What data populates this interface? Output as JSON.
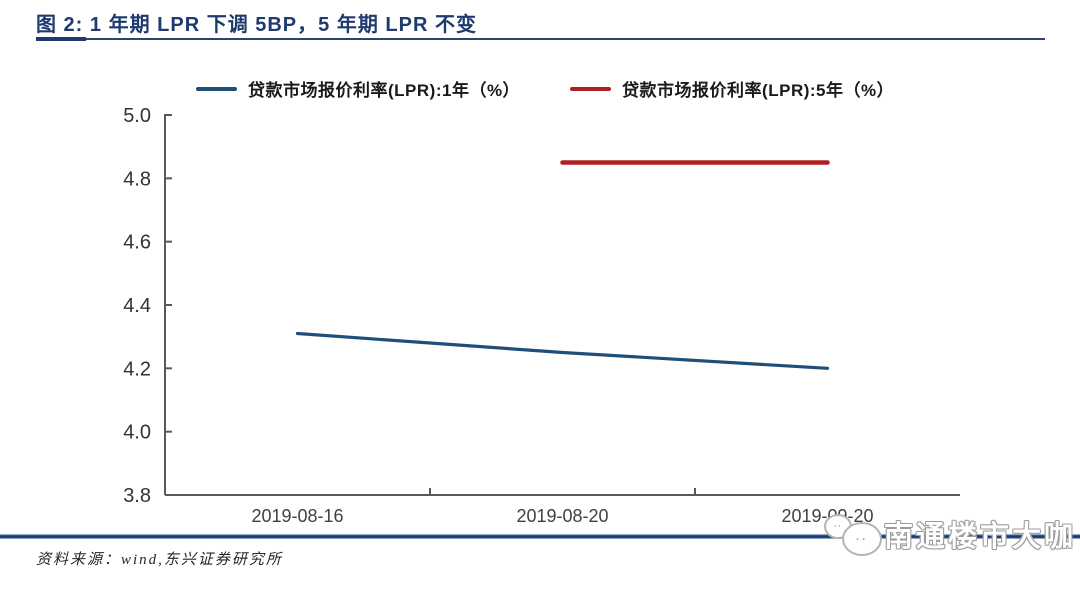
{
  "figure": {
    "title": "图 2: 1 年期 LPR 下调 5BP，5 年期 LPR 不变",
    "source": "资料来源：wind,东兴证券研究所",
    "watermark": "南通楼市大咖",
    "logo_dots_small": "··",
    "logo_dots_big": "··"
  },
  "colors": {
    "title_navy": "#1e3a6e",
    "divider_navy": "#1d3a6e",
    "axis_gray": "#595959",
    "tick_label": "#333333",
    "series_1y_blue": "#1f4e79",
    "series_5y_red": "#b02020"
  },
  "chart_data": {
    "type": "line",
    "categories": [
      "2019-08-16",
      "2019-08-20",
      "2019-09-20"
    ],
    "series": [
      {
        "name": "贷款市场报价利率(LPR):1年（%）",
        "color": "#1f4e79",
        "values": [
          4.31,
          4.25,
          4.2
        ]
      },
      {
        "name": "贷款市场报价利率(LPR):5年（%）",
        "color": "#b02020",
        "values": [
          null,
          4.85,
          4.85
        ]
      }
    ],
    "ylabel": "",
    "xlabel": "",
    "ylim": [
      3.8,
      5.0
    ],
    "ytick_step": 0.2,
    "yticks": [
      "5.0",
      "4.8",
      "4.6",
      "4.4",
      "4.2",
      "4.0",
      "3.8"
    ],
    "grid": false,
    "legend_position": "top"
  }
}
